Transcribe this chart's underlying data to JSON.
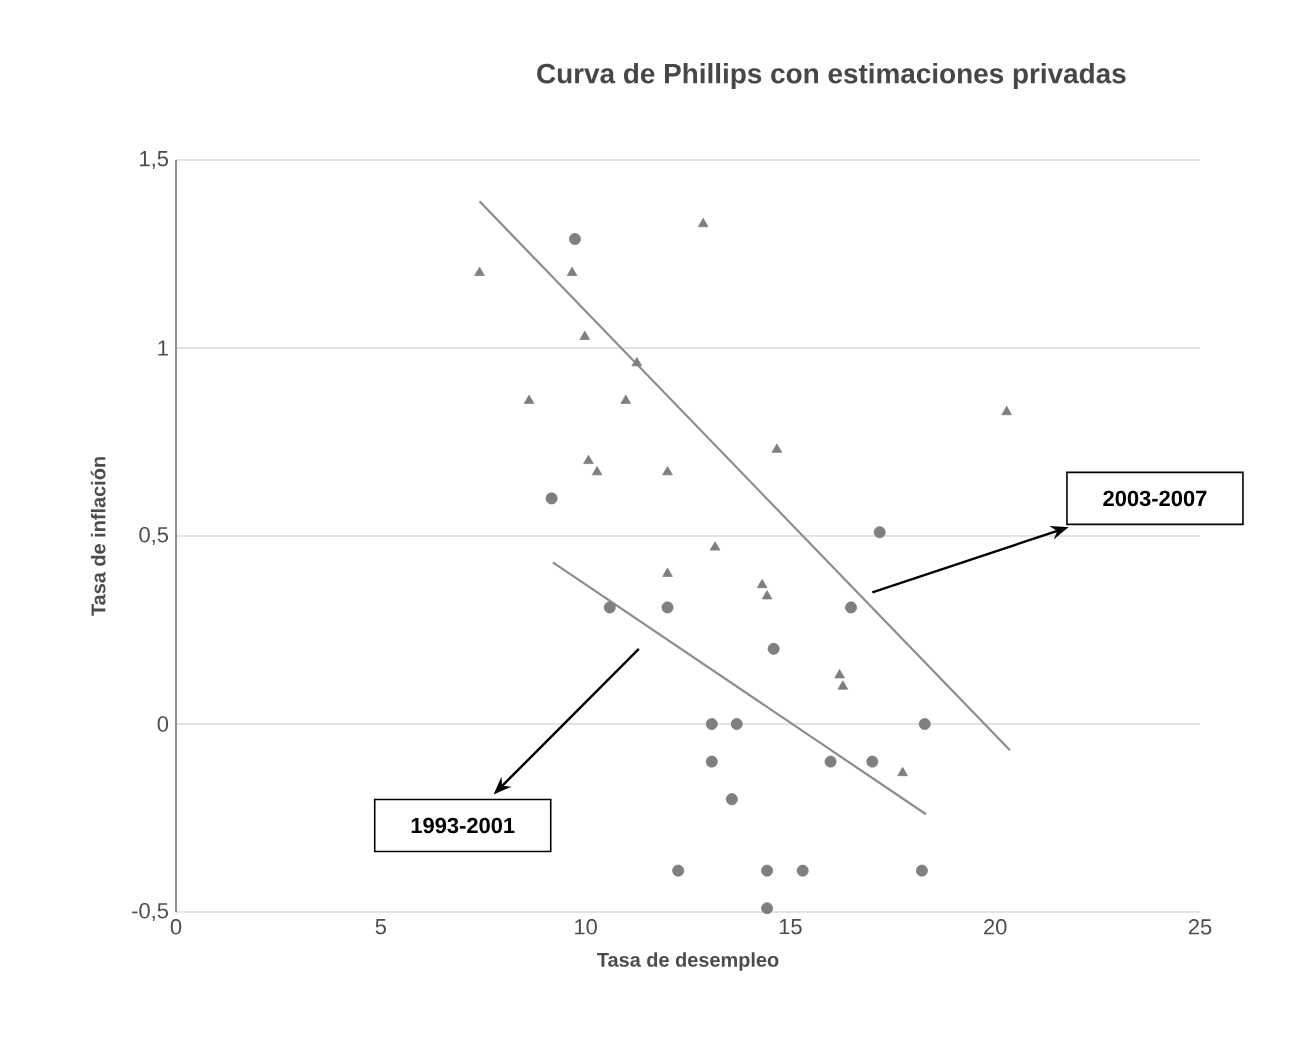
{
  "chart_data": {
    "type": "scatter",
    "title": "Curva de Phillips con estimaciones privadas",
    "xlabel": "Tasa de desempleo",
    "ylabel": "Tasa de inflación",
    "xlim": [
      0,
      25
    ],
    "ylim": [
      -0.5,
      1.5
    ],
    "xticks": [
      0,
      5,
      10,
      15,
      20,
      25
    ],
    "yticks": [
      {
        "value": -0.5,
        "label": "-0,5"
      },
      0,
      {
        "value": 0.5,
        "label": "0,5"
      },
      1,
      {
        "value": 1.5,
        "label": "1,5"
      }
    ],
    "grid": "y",
    "series": [
      {
        "color": "#7f7f7f",
        "marker": "circle",
        "x": [
          9.74,
          9.17,
          10.59,
          12.0,
          16.48,
          17.18,
          14.59,
          13.08,
          13.69,
          18.28,
          13.08,
          15.98,
          17.0,
          13.57,
          12.26,
          14.43,
          15.3,
          18.21,
          14.43
        ],
        "values": [
          1.29,
          0.6,
          0.31,
          0.31,
          0.31,
          0.51,
          0.2,
          0,
          0,
          0,
          -0.1,
          -0.1,
          -0.1,
          -0.2,
          -0.39,
          -0.39,
          -0.39,
          -0.39,
          -0.49
        ]
      },
      {
        "color": "#7f7f7f",
        "marker": "triangle",
        "x": [
          7.41,
          9.67,
          9.98,
          11.25,
          8.62,
          10.98,
          10.07,
          10.28,
          12.0,
          13.16,
          12.0,
          12.87,
          20.28,
          14.67,
          14.31,
          14.43,
          16.2,
          16.28,
          17.74
        ],
        "values": [
          1.2,
          1.2,
          1.03,
          0.96,
          0.86,
          0.86,
          0.7,
          0.67,
          0.67,
          0.47,
          0.4,
          1.33,
          0.83,
          0.73,
          0.37,
          0.34,
          0.13,
          0.1,
          -0.13
        ]
      },
      {
        "type": "line",
        "color": "#8c8c8c",
        "x": [
          7.41,
          20.36
        ],
        "values": [
          1.39,
          -0.07
        ]
      },
      {
        "type": "line",
        "color": "#8c8c8c",
        "x": [
          9.2,
          18.31
        ],
        "values": [
          0.43,
          -0.24
        ]
      }
    ],
    "annotations": [
      "2003-2007",
      "1993-2001"
    ]
  }
}
